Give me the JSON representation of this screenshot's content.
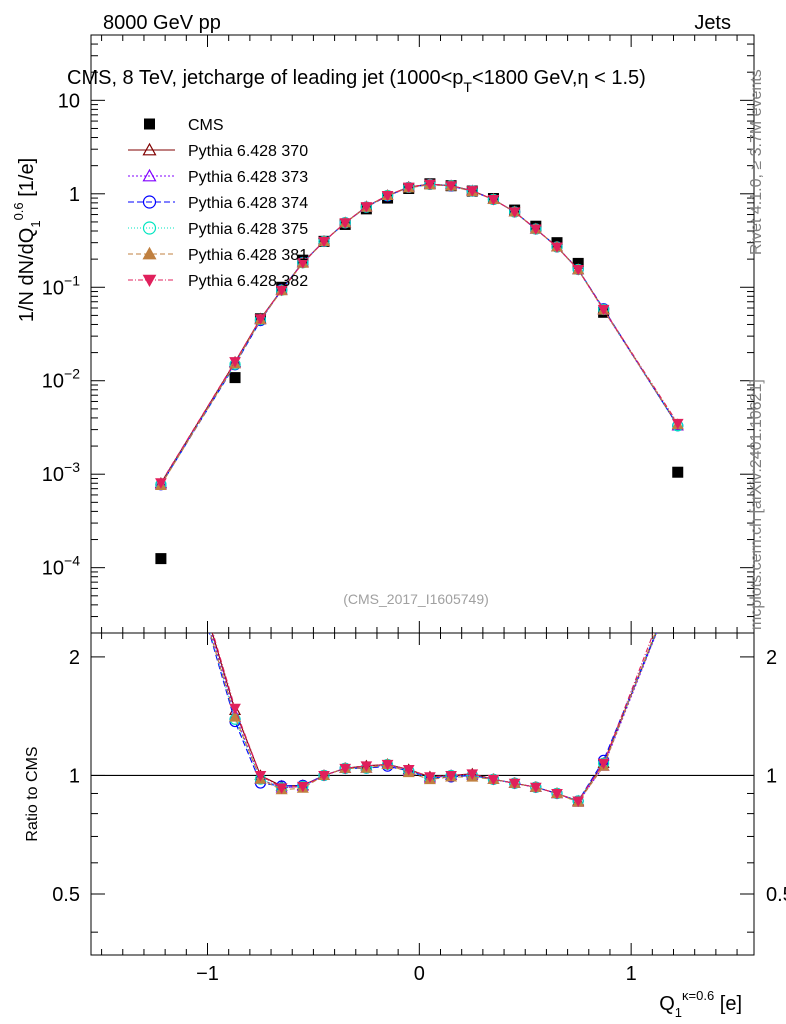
{
  "header": {
    "left_label": "8000 GeV pp",
    "right_label": "Jets",
    "plot_title": "CMS, 8 TeV, jetcharge of leading jet (1000<p",
    "plot_title_sub": "T",
    "plot_title_tail": "<1800 GeV,η < 1.5)",
    "watermark": "(CMS_2017_I1605749)"
  },
  "side_text": {
    "rivet": "Rivet 4.1.0, ≥ 3.7M events",
    "mcplots": "mcplots.cern.ch [arXiv:2401.10621]"
  },
  "axes": {
    "ylabel_main": "1/N dN/dQ",
    "ylabel_main_sub": "1",
    "ylabel_main_sup": "0.6",
    "ylabel_main_unit": " [1/e]",
    "ylabel_ratio": "Ratio to CMS",
    "xlabel": "Q",
    "xlabel_sub": "1",
    "xlabel_sup": "κ=0.6",
    "xlabel_unit": " [e]"
  },
  "colors": {
    "cms": "#000000",
    "p370": "#800000",
    "p373": "#8000ff",
    "p374": "#0000ff",
    "p375": "#00e5c0",
    "p381": "#c08040",
    "p382": "#e0205c"
  },
  "chart_data": {
    "type": "line",
    "title": "CMS, 8 TeV, jetcharge of leading jet (1000<pT<1800 GeV,η < 1.5)",
    "xlabel": "Q1^(κ=0.6) [e]",
    "ylabel": "1/N dN/dQ1^0.6 [1/e]",
    "xlim": [
      -1.55,
      1.58
    ],
    "ylim": [
      2e-05,
      50
    ],
    "yscale": "log",
    "ratio_ylim": [
      0.35,
      2.3
    ],
    "x_ticks": [
      {
        "v": -1,
        "label": "−1"
      },
      {
        "v": 0,
        "label": "0"
      },
      {
        "v": 1,
        "label": "1"
      }
    ],
    "y_ticks": [
      {
        "v": 10,
        "label": "10",
        "exp": ""
      },
      {
        "v": 1,
        "label": "1",
        "exp": ""
      },
      {
        "v": 0.1,
        "label": "10",
        "exp": "−1"
      },
      {
        "v": 0.01,
        "label": "10",
        "exp": "−2"
      },
      {
        "v": 0.001,
        "label": "10",
        "exp": "−3"
      },
      {
        "v": 0.0001,
        "label": "10",
        "exp": "−4"
      }
    ],
    "ratio_ticks": [
      {
        "v": 0.5,
        "label": "0.5"
      },
      {
        "v": 1,
        "label": "1"
      },
      {
        "v": 2,
        "label": "2"
      }
    ],
    "x": [
      -1.22,
      -0.87,
      -0.75,
      -0.65,
      -0.55,
      -0.45,
      -0.35,
      -0.25,
      -0.15,
      -0.05,
      0.05,
      0.15,
      0.25,
      0.35,
      0.45,
      0.55,
      0.65,
      0.75,
      0.87,
      1.22
    ],
    "series": [
      {
        "name": "CMS",
        "key": "cms",
        "marker": "square",
        "dash": "",
        "values": [
          0.000125,
          0.0108,
          0.046,
          0.1,
          0.195,
          0.31,
          0.47,
          0.69,
          0.9,
          1.14,
          1.28,
          1.22,
          1.07,
          0.89,
          0.67,
          0.45,
          0.3,
          0.18,
          0.054,
          0.00105
        ]
      },
      {
        "name": "Pythia 6.428 370",
        "key": "p370",
        "marker": "tri-up-open",
        "dash": "",
        "values": [
          0.0008,
          0.0158,
          0.046,
          0.094,
          0.184,
          0.31,
          0.49,
          0.73,
          0.96,
          1.18,
          1.27,
          1.22,
          1.08,
          0.87,
          0.64,
          0.42,
          0.27,
          0.155,
          0.058,
          0.0033
        ]
      },
      {
        "name": "Pythia 6.428 373",
        "key": "p373",
        "marker": "tri-up-open",
        "dash": "2,2",
        "values": [
          0.00078,
          0.0154,
          0.045,
          0.093,
          0.183,
          0.31,
          0.49,
          0.72,
          0.96,
          1.17,
          1.26,
          1.22,
          1.07,
          0.87,
          0.64,
          0.42,
          0.27,
          0.154,
          0.057,
          0.0033
        ]
      },
      {
        "name": "Pythia 6.428 374",
        "key": "p374",
        "marker": "circle-open",
        "dash": "6,3",
        "values": [
          0.00077,
          0.0148,
          0.044,
          0.094,
          0.184,
          0.31,
          0.49,
          0.72,
          0.95,
          1.17,
          1.26,
          1.21,
          1.07,
          0.87,
          0.64,
          0.42,
          0.27,
          0.155,
          0.059,
          0.0033
        ]
      },
      {
        "name": "Pythia 6.428 375",
        "key": "p375",
        "marker": "circle-open",
        "dash": "1,2",
        "values": [
          0.00078,
          0.015,
          0.045,
          0.093,
          0.183,
          0.31,
          0.49,
          0.72,
          0.96,
          1.17,
          1.26,
          1.22,
          1.07,
          0.87,
          0.64,
          0.42,
          0.27,
          0.155,
          0.058,
          0.0033
        ]
      },
      {
        "name": "Pythia 6.428 381",
        "key": "p381",
        "marker": "tri-up-filled",
        "dash": "5,3",
        "values": [
          0.00076,
          0.0152,
          0.045,
          0.092,
          0.181,
          0.31,
          0.49,
          0.72,
          0.96,
          1.16,
          1.25,
          1.21,
          1.06,
          0.87,
          0.64,
          0.42,
          0.27,
          0.154,
          0.057,
          0.0034
        ]
      },
      {
        "name": "Pythia 6.428 382",
        "key": "p382",
        "marker": "tri-down-filled",
        "dash": "5,2,1,2",
        "values": [
          0.00081,
          0.016,
          0.046,
          0.093,
          0.183,
          0.31,
          0.49,
          0.73,
          0.96,
          1.18,
          1.27,
          1.22,
          1.08,
          0.87,
          0.64,
          0.42,
          0.27,
          0.155,
          0.058,
          0.0035
        ]
      }
    ]
  }
}
